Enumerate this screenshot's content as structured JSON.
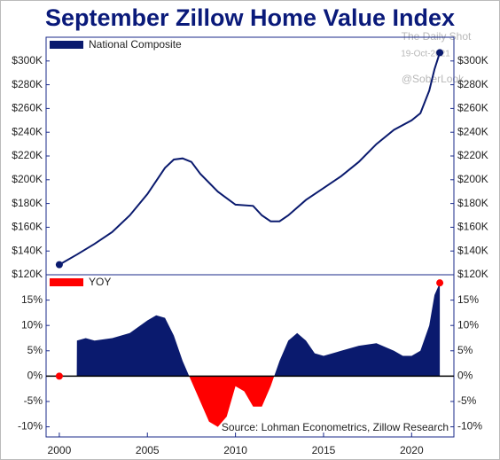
{
  "chart_data": [
    {
      "type": "line",
      "title": "September Zillow Home Value Index",
      "watermark": [
        "The Daily Shot",
        "19-Oct-2021",
        "@SoberLook"
      ],
      "x": [
        2000,
        2001,
        2002,
        2003,
        2004,
        2005,
        2006,
        2006.5,
        2007,
        2007.5,
        2008,
        2009,
        2010,
        2011,
        2011.5,
        2012,
        2012.5,
        2013,
        2014,
        2015,
        2016,
        2017,
        2018,
        2019,
        2020,
        2020.5,
        2021,
        2021.3,
        2021.6
      ],
      "series": [
        {
          "name": "National Composite",
          "color": "#0a1a6e",
          "values": [
            128500,
            137000,
            146000,
            156000,
            170000,
            188000,
            210000,
            217000,
            218000,
            215000,
            205000,
            190000,
            179000,
            178000,
            170000,
            165000,
            165000,
            170000,
            183000,
            193000,
            203000,
            215000,
            230000,
            242000,
            250000,
            256000,
            275000,
            293000,
            307000
          ]
        }
      ],
      "xlim": [
        1999.25,
        2022.4
      ],
      "ylim": [
        120000,
        320000
      ],
      "yticks": [
        {
          "value": 120000,
          "label": "$120K"
        },
        {
          "value": 140000,
          "label": "$140K"
        },
        {
          "value": 160000,
          "label": "$160K"
        },
        {
          "value": 180000,
          "label": "$180K"
        },
        {
          "value": 200000,
          "label": "$200K"
        },
        {
          "value": 220000,
          "label": "$220K"
        },
        {
          "value": 240000,
          "label": "$240K"
        },
        {
          "value": 260000,
          "label": "$260K"
        },
        {
          "value": 280000,
          "label": "$280K"
        },
        {
          "value": 300000,
          "label": "$300K"
        }
      ],
      "end_markers": true
    },
    {
      "type": "area",
      "annotation": "Source: Lohman Econometrics, Zillow Research",
      "x": [
        2000,
        2000.99,
        2001,
        2001.5,
        2002,
        2003,
        2004,
        2005,
        2005.5,
        2006,
        2006.5,
        2007,
        2007.5,
        2008,
        2008.5,
        2009,
        2009.5,
        2010,
        2010.5,
        2011,
        2011.5,
        2012,
        2012.5,
        2013,
        2013.5,
        2014,
        2014.5,
        2015,
        2016,
        2017,
        2018,
        2019,
        2019.5,
        2020,
        2020.5,
        2021,
        2021.3,
        2021.6
      ],
      "series": [
        {
          "name": "YOY",
          "color": "#ff0000",
          "positive_color": "#0a1a6e",
          "values": [
            0,
            0,
            7,
            7.5,
            7,
            7.5,
            8.5,
            11,
            12,
            11.5,
            8,
            3,
            -1,
            -5,
            -9,
            -10,
            -8,
            -2,
            -3,
            -6,
            -6,
            -2,
            3,
            7,
            8.5,
            7,
            4.5,
            4,
            5,
            6,
            6.5,
            5,
            4,
            4,
            5,
            10,
            16,
            18.4
          ]
        }
      ],
      "xlim": [
        1999.25,
        2022.4
      ],
      "ylim": [
        -12,
        20
      ],
      "xticks": [
        2000,
        2005,
        2010,
        2015,
        2020
      ],
      "yticks": [
        {
          "value": -10,
          "label": "-10%"
        },
        {
          "value": -5,
          "label": "-5%"
        },
        {
          "value": 0,
          "label": "0%"
        },
        {
          "value": 5,
          "label": "5%"
        },
        {
          "value": 10,
          "label": "10%"
        },
        {
          "value": 15,
          "label": "15%"
        }
      ],
      "end_markers": true
    }
  ]
}
